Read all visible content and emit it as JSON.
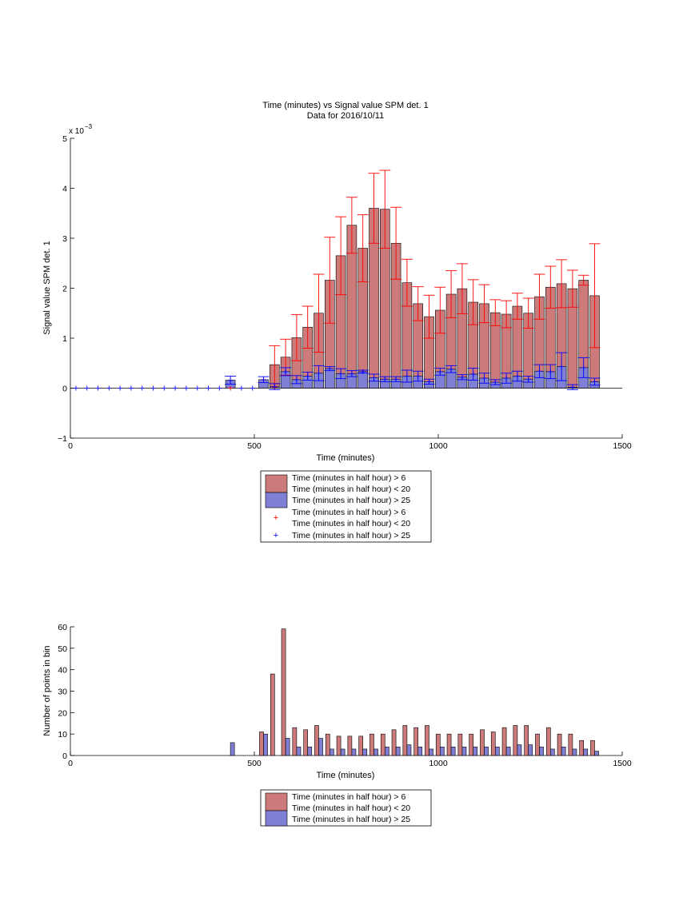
{
  "top_chart": {
    "title_line1": "Time (minutes) vs Signal value SPM det. 1",
    "title_line2": "Data for 2016/10/11",
    "xlabel": "Time (minutes)",
    "ylabel": "Signal value SPM det. 1",
    "exponent_base": "x 10",
    "exponent_power": "−3",
    "legend": [
      {
        "text": "Time (minutes in half hour) > 6"
      },
      {
        "text": "Time (minutes in half hour) < 20"
      },
      {
        "text": "Time (minutes in half hour) > 25"
      },
      {
        "text": "Time (minutes in half hour) > 6"
      },
      {
        "text": "Time (minutes in half hour) < 20"
      },
      {
        "text": "Time (minutes in half hour) > 25"
      }
    ]
  },
  "bottom_chart": {
    "xlabel": "Time (minutes)",
    "ylabel": "Number of points in bin",
    "legend": [
      {
        "text": "Time (minutes in half hour) > 6"
      },
      {
        "text": "Time (minutes in half hour) < 20"
      },
      {
        "text": "Time (minutes in half hour) > 25"
      }
    ]
  },
  "colors": {
    "red_fill": "#cc7a7a",
    "blue_fill": "#7f7fd5",
    "red_marker": "#ff0000",
    "blue_marker": "#0000ff"
  },
  "chart_data": [
    {
      "type": "bar",
      "title": "Time (minutes) vs Signal value SPM det. 1 / Data for 2016/10/11",
      "xlabel": "Time (minutes)",
      "ylabel": "Signal value SPM det. 1",
      "xlim": [
        0,
        1500
      ],
      "ylim": [
        -1,
        5
      ],
      "y_scale_note": "x 10^-3",
      "xticks": [
        0,
        500,
        1000,
        1500
      ],
      "yticks": [
        -1,
        0,
        1,
        2,
        3,
        4,
        5
      ],
      "grid": false,
      "legend_position": "below",
      "series": [
        {
          "name": "Time (minutes in half hour) > 6 / Time (minutes in half hour) < 20",
          "color": "#cc7a7a",
          "x": [
            555,
            585,
            615,
            645,
            675,
            705,
            735,
            765,
            795,
            825,
            855,
            885,
            915,
            945,
            975,
            1005,
            1035,
            1065,
            1095,
            1125,
            1155,
            1185,
            1215,
            1245,
            1275,
            1305,
            1335,
            1365,
            1395,
            1425
          ],
          "values": [
            0.47,
            0.62,
            1.01,
            1.22,
            1.5,
            2.16,
            2.65,
            3.26,
            2.8,
            3.6,
            3.58,
            2.9,
            2.11,
            1.69,
            1.43,
            1.56,
            1.88,
            1.99,
            1.72,
            1.69,
            1.51,
            1.48,
            1.64,
            1.5,
            1.83,
            2.02,
            2.09,
            1.99,
            2.16,
            1.85
          ],
          "err_plus": [
            0.38,
            0.36,
            0.46,
            0.42,
            0.78,
            0.86,
            0.78,
            0.56,
            0.67,
            0.7,
            0.78,
            0.72,
            0.47,
            0.34,
            0.43,
            0.46,
            0.47,
            0.5,
            0.45,
            0.38,
            0.26,
            0.27,
            0.26,
            0.3,
            0.45,
            0.42,
            0.48,
            0.37,
            0.1,
            1.04
          ],
          "err_minus": [
            0.38,
            0.36,
            0.46,
            0.42,
            0.78,
            0.86,
            0.78,
            0.56,
            0.67,
            0.7,
            0.78,
            0.72,
            0.47,
            0.34,
            0.43,
            0.46,
            0.47,
            0.5,
            0.45,
            0.38,
            0.26,
            0.27,
            0.26,
            0.3,
            0.45,
            0.42,
            0.48,
            0.37,
            0.1,
            1.04
          ]
        },
        {
          "name": "Time (minutes in half hour) > 25",
          "color": "#7f7fd5",
          "x": [
            435,
            525,
            555,
            585,
            615,
            645,
            675,
            705,
            735,
            765,
            795,
            825,
            855,
            885,
            915,
            945,
            975,
            1005,
            1035,
            1065,
            1095,
            1125,
            1155,
            1185,
            1215,
            1245,
            1275,
            1305,
            1335,
            1365,
            1395,
            1425
          ],
          "values": [
            0.16,
            0.17,
            0.03,
            0.33,
            0.17,
            0.24,
            0.3,
            0.39,
            0.29,
            0.29,
            0.33,
            0.21,
            0.18,
            0.18,
            0.24,
            0.24,
            0.13,
            0.33,
            0.38,
            0.22,
            0.28,
            0.2,
            0.12,
            0.2,
            0.24,
            0.18,
            0.34,
            0.33,
            0.43,
            0.02,
            0.41,
            0.13
          ],
          "err_plus": [
            0.08,
            0.06,
            0.06,
            0.08,
            0.08,
            0.08,
            0.15,
            0.04,
            0.1,
            0.06,
            0.03,
            0.07,
            0.05,
            0.05,
            0.12,
            0.1,
            0.05,
            0.07,
            0.07,
            0.05,
            0.12,
            0.1,
            0.05,
            0.1,
            0.1,
            0.06,
            0.13,
            0.14,
            0.28,
            0.05,
            0.2,
            0.07
          ],
          "err_minus": [
            0.08,
            0.06,
            0.06,
            0.08,
            0.08,
            0.08,
            0.15,
            0.04,
            0.1,
            0.06,
            0.03,
            0.07,
            0.05,
            0.05,
            0.12,
            0.1,
            0.05,
            0.07,
            0.07,
            0.05,
            0.12,
            0.1,
            0.05,
            0.1,
            0.1,
            0.06,
            0.13,
            0.14,
            0.28,
            0.05,
            0.2,
            0.07
          ]
        },
        {
          "name": "Time (minutes in half hour) > 6 / Time (minutes in half hour) < 20 (markers)",
          "type": "scatter",
          "color": "#ff0000",
          "x": [
            435,
            525,
            555
          ],
          "values": [
            0.0,
            0.17,
            0.02
          ]
        },
        {
          "name": "Time (minutes in half hour) > 25 (markers)",
          "type": "scatter",
          "color": "#0000ff",
          "x": [
            15,
            45,
            75,
            105,
            135,
            165,
            195,
            225,
            255,
            285,
            315,
            345,
            375,
            405,
            435,
            465,
            495,
            525,
            555,
            585,
            615,
            645,
            675,
            705,
            735,
            765,
            795,
            825,
            855,
            885,
            915,
            945,
            975,
            1005,
            1035,
            1065,
            1095,
            1125,
            1155,
            1185,
            1215,
            1245,
            1275,
            1305,
            1335,
            1365,
            1395,
            1425
          ],
          "values": [
            0,
            0,
            0,
            0,
            0,
            0,
            0,
            0,
            0,
            0,
            0,
            0,
            0,
            0,
            0.16,
            0,
            0,
            0.17,
            0.03,
            0.33,
            0.17,
            0.24,
            0.3,
            0.39,
            0.29,
            0.29,
            0.33,
            0.21,
            0.18,
            0.18,
            0.24,
            0.24,
            0.13,
            0.33,
            0.38,
            0.22,
            0.28,
            0.2,
            0.12,
            0.2,
            0.24,
            0.18,
            0.34,
            0.33,
            0.43,
            0.02,
            0.41,
            0.13
          ]
        }
      ]
    },
    {
      "type": "bar",
      "xlabel": "Time (minutes)",
      "ylabel": "Number of points in bin",
      "xlim": [
        0,
        1500
      ],
      "ylim": [
        0,
        60
      ],
      "xticks": [
        0,
        500,
        1000,
        1500
      ],
      "yticks": [
        0,
        10,
        20,
        30,
        40,
        50,
        60
      ],
      "grid": false,
      "legend_position": "below",
      "series": [
        {
          "name": "Time (minutes in half hour) > 6 / Time (minutes in half hour) < 20",
          "color": "#cc7a7a",
          "x": [
            525,
            555,
            585,
            615,
            645,
            675,
            705,
            735,
            765,
            795,
            825,
            855,
            885,
            915,
            945,
            975,
            1005,
            1035,
            1065,
            1095,
            1125,
            1155,
            1185,
            1215,
            1245,
            1275,
            1305,
            1335,
            1365,
            1395,
            1425
          ],
          "values": [
            11,
            38,
            59,
            13,
            12,
            14,
            10,
            9,
            9,
            9,
            10,
            10,
            12,
            14,
            13,
            14,
            10,
            10,
            10,
            10,
            12,
            11,
            13,
            14,
            14,
            10,
            13,
            10,
            10,
            7,
            7
          ]
        },
        {
          "name": "Time (minutes in half hour) > 25",
          "color": "#7f7fd5",
          "x": [
            435,
            525,
            585,
            615,
            645,
            675,
            705,
            735,
            765,
            795,
            825,
            855,
            885,
            915,
            945,
            975,
            1005,
            1035,
            1065,
            1095,
            1125,
            1155,
            1185,
            1215,
            1245,
            1275,
            1305,
            1335,
            1365,
            1395,
            1425
          ],
          "values": [
            6,
            10,
            8,
            4,
            4,
            8,
            3,
            3,
            3,
            3,
            3,
            4,
            4,
            5,
            4,
            3,
            4,
            4,
            4,
            4,
            4,
            4,
            4,
            5,
            5,
            4,
            3,
            4,
            3,
            3,
            2
          ]
        }
      ]
    }
  ]
}
